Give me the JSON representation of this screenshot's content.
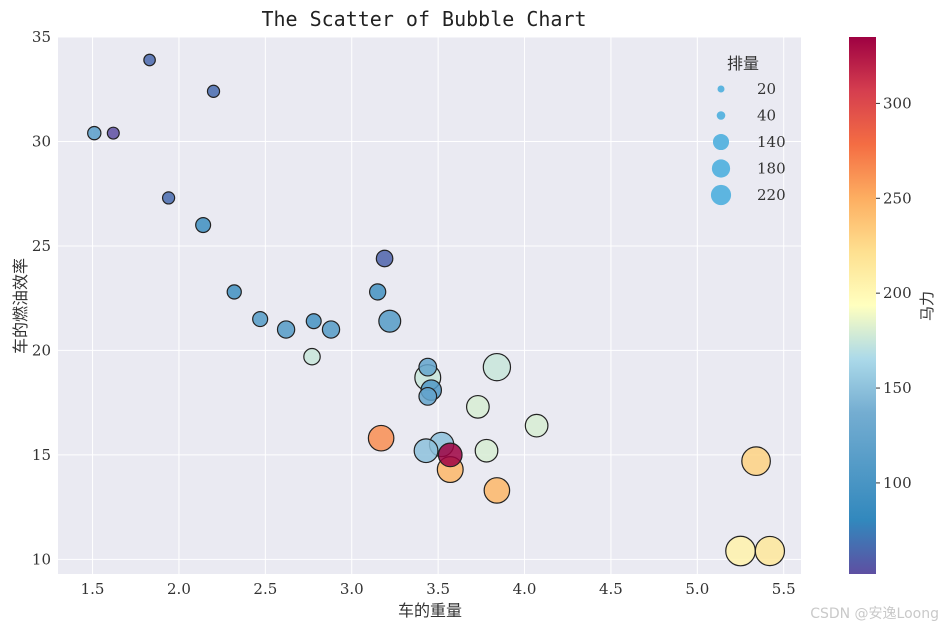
{
  "chart_data": {
    "type": "scatter",
    "title": "The Scatter of Bubble Chart",
    "xlabel": "车的重量",
    "ylabel": "车的燃油效率",
    "xlim": [
      1.3,
      5.6
    ],
    "ylim": [
      9.3,
      35
    ],
    "xticks": [
      1.5,
      2.0,
      2.5,
      3.0,
      3.5,
      4.0,
      4.5,
      5.0,
      5.5
    ],
    "xtick_labels": [
      "1.5",
      "2.0",
      "2.5",
      "3.0",
      "3.5",
      "4.0",
      "4.5",
      "5.0",
      "5.5"
    ],
    "yticks": [
      10,
      15,
      20,
      25,
      30,
      35
    ],
    "ytick_labels": [
      "10",
      "15",
      "20",
      "25",
      "30",
      "35"
    ],
    "grid": true,
    "size_encoding": "displacement",
    "color_encoding": "horsepower",
    "colormap": "RdYlBu_r",
    "legend": {
      "title": "排量",
      "placement": "top-right",
      "entries": [
        {
          "label": "20",
          "size": 20
        },
        {
          "label": "40",
          "size": 40
        },
        {
          "label": "140",
          "size": 140
        },
        {
          "label": "180",
          "size": 180
        },
        {
          "label": "220",
          "size": 220
        }
      ],
      "marker_color": "#5db5e0"
    },
    "colorbar": {
      "label": "马力",
      "min": 52,
      "max": 335,
      "ticks": [
        100,
        150,
        200,
        250,
        300
      ],
      "tick_labels": [
        "100",
        "150",
        "200",
        "250",
        "300"
      ]
    },
    "points": [
      {
        "x": 1.83,
        "y": 33.9,
        "size": 71,
        "color": 65
      },
      {
        "x": 2.2,
        "y": 32.4,
        "size": 79,
        "color": 66
      },
      {
        "x": 1.51,
        "y": 30.4,
        "size": 95,
        "color": 113
      },
      {
        "x": 1.62,
        "y": 30.4,
        "size": 76,
        "color": 52
      },
      {
        "x": 1.94,
        "y": 27.3,
        "size": 79,
        "color": 66
      },
      {
        "x": 2.14,
        "y": 26.0,
        "size": 120,
        "color": 91
      },
      {
        "x": 3.19,
        "y": 24.4,
        "size": 147,
        "color": 62
      },
      {
        "x": 2.32,
        "y": 22.8,
        "size": 108,
        "color": 93
      },
      {
        "x": 3.15,
        "y": 22.8,
        "size": 141,
        "color": 95
      },
      {
        "x": 2.47,
        "y": 21.5,
        "size": 121,
        "color": 109
      },
      {
        "x": 2.62,
        "y": 21.0,
        "size": 160,
        "color": 110
      },
      {
        "x": 2.78,
        "y": 21.4,
        "size": 120,
        "color": 97
      },
      {
        "x": 2.88,
        "y": 21.0,
        "size": 160,
        "color": 110
      },
      {
        "x": 3.22,
        "y": 21.4,
        "size": 258,
        "color": 110
      },
      {
        "x": 2.77,
        "y": 19.7,
        "size": 145,
        "color": 175
      },
      {
        "x": 3.44,
        "y": 19.2,
        "size": 168,
        "color": 123
      },
      {
        "x": 3.84,
        "y": 19.2,
        "size": 400,
        "color": 175
      },
      {
        "x": 3.44,
        "y": 18.7,
        "size": 360,
        "color": 175
      },
      {
        "x": 3.46,
        "y": 18.1,
        "size": 225,
        "color": 105
      },
      {
        "x": 3.44,
        "y": 17.8,
        "size": 168,
        "color": 123
      },
      {
        "x": 3.73,
        "y": 17.3,
        "size": 276,
        "color": 180
      },
      {
        "x": 4.07,
        "y": 16.4,
        "size": 276,
        "color": 180
      },
      {
        "x": 3.17,
        "y": 15.8,
        "size": 351,
        "color": 264
      },
      {
        "x": 3.52,
        "y": 15.5,
        "size": 318,
        "color": 150
      },
      {
        "x": 3.43,
        "y": 15.2,
        "size": 304,
        "color": 150
      },
      {
        "x": 3.78,
        "y": 15.2,
        "size": 276,
        "color": 180
      },
      {
        "x": 3.57,
        "y": 15.0,
        "size": 301,
        "color": 335
      },
      {
        "x": 5.34,
        "y": 14.7,
        "size": 440,
        "color": 230
      },
      {
        "x": 3.57,
        "y": 14.3,
        "size": 360,
        "color": 245
      },
      {
        "x": 3.84,
        "y": 13.3,
        "size": 350,
        "color": 245
      },
      {
        "x": 5.25,
        "y": 10.4,
        "size": 472,
        "color": 205
      },
      {
        "x": 5.42,
        "y": 10.4,
        "size": 460,
        "color": 215
      }
    ]
  },
  "watermark": "CSDN @安逸Loong"
}
